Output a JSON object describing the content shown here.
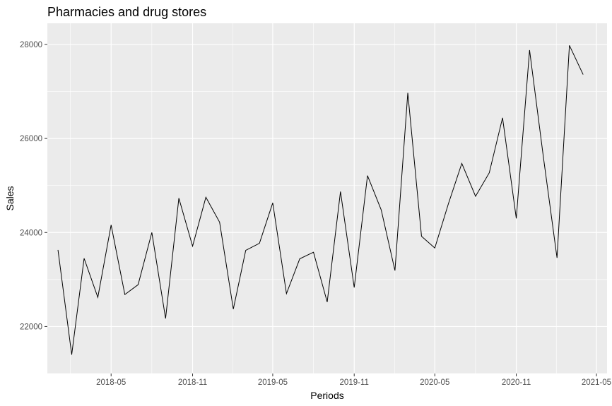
{
  "chart_data": {
    "type": "line",
    "title": "Pharmacies and drug stores",
    "xlabel": "Periods",
    "ylabel": "Sales",
    "x_axis_kind": "date",
    "x_ticks": [
      "2018-05",
      "2018-11",
      "2019-05",
      "2019-11",
      "2020-05",
      "2020-11",
      "2021-05"
    ],
    "y_ticks": [
      22000,
      24000,
      26000,
      28000
    ],
    "xlim": [
      "2017-12-08",
      "2021-05-25"
    ],
    "ylim": [
      21000,
      28450
    ],
    "grid": true,
    "legend": "none",
    "colors": {
      "panel": "#ebebeb",
      "grid_major": "#ffffff",
      "line": "#000000",
      "tick_text": "#4d4d4d"
    },
    "series": [
      {
        "x": [
          "2018-01",
          "2018-02",
          "2018-03",
          "2018-04",
          "2018-05",
          "2018-06",
          "2018-07",
          "2018-08",
          "2018-09",
          "2018-10",
          "2018-11",
          "2018-12",
          "2019-01",
          "2019-02",
          "2019-03",
          "2019-04",
          "2019-05",
          "2019-06",
          "2019-07",
          "2019-08",
          "2019-09",
          "2019-10",
          "2019-11",
          "2019-12",
          "2020-01",
          "2020-02",
          "2020-03",
          "2020-04",
          "2020-05",
          "2020-06",
          "2020-07",
          "2020-08",
          "2020-09",
          "2020-10",
          "2020-11",
          "2020-12",
          "2021-01",
          "2021-02",
          "2021-03",
          "2021-04"
        ],
        "values": [
          23630,
          21400,
          23450,
          22620,
          24160,
          22680,
          22890,
          24000,
          22170,
          24730,
          23710,
          24750,
          24220,
          22370,
          23620,
          23770,
          24630,
          22700,
          23440,
          23580,
          22520,
          24870,
          22830,
          25210,
          24480,
          23190,
          26970,
          23920,
          23670,
          24620,
          25470,
          24770,
          25270,
          26440,
          24300,
          27880,
          25620,
          23460,
          27980,
          27360
        ]
      }
    ]
  }
}
